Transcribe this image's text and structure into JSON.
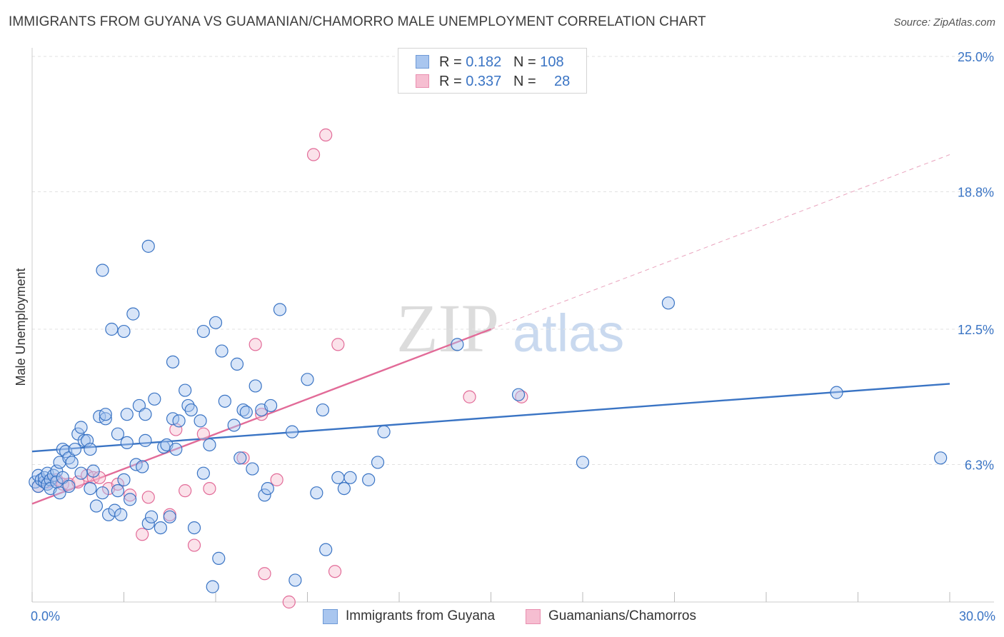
{
  "title": "IMMIGRANTS FROM GUYANA VS GUAMANIAN/CHAMORRO MALE UNEMPLOYMENT CORRELATION CHART",
  "source": "Source: ZipAtlas.com",
  "watermark": {
    "zip": "ZIP",
    "atlas": "atlas"
  },
  "legend": {
    "rows": [
      {
        "r_label": "R = ",
        "r_value": "0.182",
        "n_label": "N = ",
        "n_value": "108"
      },
      {
        "r_label": "R = ",
        "r_value": "0.337",
        "n_label": "N = ",
        "n_value": "28"
      }
    ]
  },
  "chart_data": {
    "type": "scatter",
    "title": "IMMIGRANTS FROM GUYANA VS GUAMANIAN/CHAMORRO MALE UNEMPLOYMENT CORRELATION CHART",
    "xlabel": "",
    "ylabel": "Male Unemployment",
    "xlim": [
      0,
      30
    ],
    "ylim": [
      0,
      25
    ],
    "x_tick_labels": [
      "0.0%",
      "30.0%"
    ],
    "y_ticks": [
      6.3,
      12.5,
      18.8,
      25.0
    ],
    "y_tick_labels": [
      "6.3%",
      "12.5%",
      "18.8%",
      "25.0%"
    ],
    "grid": true,
    "legend_position": "bottom-center",
    "colors": {
      "blue": "#3a74c4",
      "blue_fill": "#a9c6ef",
      "pink": "#e26b98",
      "pink_fill": "#f6bed1"
    },
    "series": [
      {
        "name": "Immigrants from Guyana",
        "color": "#3a74c4",
        "r": 0.182,
        "n": 108,
        "trend": {
          "x": [
            0,
            30
          ],
          "y": [
            6.9,
            10.0
          ]
        },
        "points": [
          [
            0.1,
            5.5
          ],
          [
            0.2,
            5.3
          ],
          [
            0.2,
            5.8
          ],
          [
            0.3,
            5.6
          ],
          [
            0.4,
            5.5
          ],
          [
            0.4,
            5.7
          ],
          [
            0.5,
            5.4
          ],
          [
            0.5,
            5.9
          ],
          [
            0.6,
            5.6
          ],
          [
            0.6,
            5.2
          ],
          [
            0.7,
            5.8
          ],
          [
            0.8,
            6.0
          ],
          [
            0.8,
            5.5
          ],
          [
            0.9,
            6.4
          ],
          [
            0.9,
            5.0
          ],
          [
            1.0,
            7.0
          ],
          [
            1.0,
            5.7
          ],
          [
            1.1,
            6.9
          ],
          [
            1.2,
            6.6
          ],
          [
            1.2,
            5.3
          ],
          [
            1.3,
            6.4
          ],
          [
            1.4,
            7.0
          ],
          [
            1.5,
            7.7
          ],
          [
            1.6,
            8.0
          ],
          [
            1.6,
            5.9
          ],
          [
            1.7,
            7.4
          ],
          [
            1.8,
            7.4
          ],
          [
            1.9,
            5.2
          ],
          [
            1.9,
            7.0
          ],
          [
            2.0,
            6.0
          ],
          [
            2.1,
            4.4
          ],
          [
            2.2,
            8.5
          ],
          [
            2.3,
            5.0
          ],
          [
            2.3,
            15.2
          ],
          [
            2.4,
            8.4
          ],
          [
            2.4,
            8.6
          ],
          [
            2.5,
            4.0
          ],
          [
            2.6,
            12.5
          ],
          [
            2.7,
            4.2
          ],
          [
            2.8,
            5.1
          ],
          [
            2.8,
            7.7
          ],
          [
            2.9,
            4.0
          ],
          [
            3.0,
            5.6
          ],
          [
            3.0,
            12.4
          ],
          [
            3.1,
            7.3
          ],
          [
            3.1,
            8.6
          ],
          [
            3.2,
            4.7
          ],
          [
            3.3,
            13.2
          ],
          [
            3.4,
            6.3
          ],
          [
            3.5,
            9.0
          ],
          [
            3.6,
            6.2
          ],
          [
            3.7,
            8.6
          ],
          [
            3.7,
            7.4
          ],
          [
            3.8,
            16.3
          ],
          [
            3.8,
            3.6
          ],
          [
            3.9,
            3.9
          ],
          [
            4.0,
            9.3
          ],
          [
            4.2,
            3.4
          ],
          [
            4.3,
            7.1
          ],
          [
            4.4,
            7.2
          ],
          [
            4.5,
            3.9
          ],
          [
            4.6,
            8.4
          ],
          [
            4.6,
            11.0
          ],
          [
            4.7,
            7.0
          ],
          [
            4.8,
            8.3
          ],
          [
            5.0,
            9.7
          ],
          [
            5.1,
            9.0
          ],
          [
            5.2,
            8.8
          ],
          [
            5.3,
            3.4
          ],
          [
            5.5,
            8.3
          ],
          [
            5.6,
            5.9
          ],
          [
            5.6,
            12.4
          ],
          [
            5.8,
            7.2
          ],
          [
            5.9,
            0.7
          ],
          [
            6.0,
            12.8
          ],
          [
            6.1,
            2.0
          ],
          [
            6.2,
            11.5
          ],
          [
            6.3,
            9.2
          ],
          [
            6.6,
            8.1
          ],
          [
            6.7,
            10.9
          ],
          [
            6.8,
            6.6
          ],
          [
            6.9,
            8.8
          ],
          [
            7.0,
            8.7
          ],
          [
            7.2,
            6.1
          ],
          [
            7.3,
            9.9
          ],
          [
            7.5,
            8.8
          ],
          [
            7.6,
            4.9
          ],
          [
            7.7,
            5.2
          ],
          [
            7.8,
            9.0
          ],
          [
            8.1,
            13.4
          ],
          [
            8.5,
            7.8
          ],
          [
            8.6,
            1.0
          ],
          [
            9.0,
            10.2
          ],
          [
            9.3,
            5.0
          ],
          [
            9.5,
            8.8
          ],
          [
            9.6,
            2.4
          ],
          [
            10.0,
            5.7
          ],
          [
            10.2,
            5.2
          ],
          [
            10.4,
            5.7
          ],
          [
            11.0,
            5.6
          ],
          [
            11.3,
            6.4
          ],
          [
            11.5,
            7.8
          ],
          [
            13.9,
            11.8
          ],
          [
            15.9,
            9.5
          ],
          [
            18.0,
            6.4
          ],
          [
            20.8,
            13.7
          ],
          [
            26.3,
            9.6
          ],
          [
            29.7,
            6.6
          ]
        ]
      },
      {
        "name": "Guamanians/Chamorros",
        "color": "#e26b98",
        "r": 0.337,
        "n": 28,
        "trend": {
          "x": [
            0,
            15
          ],
          "y": [
            4.5,
            12.5
          ],
          "extended": {
            "x": [
              15,
              30
            ],
            "y": [
              12.5,
              20.5
            ]
          }
        },
        "points": [
          [
            0.2,
            5.3
          ],
          [
            0.5,
            5.5
          ],
          [
            0.8,
            5.6
          ],
          [
            1.0,
            5.4
          ],
          [
            1.2,
            5.4
          ],
          [
            1.5,
            5.5
          ],
          [
            1.8,
            5.8
          ],
          [
            2.0,
            5.7
          ],
          [
            2.2,
            5.7
          ],
          [
            2.5,
            5.2
          ],
          [
            2.8,
            5.4
          ],
          [
            3.2,
            4.9
          ],
          [
            3.6,
            3.1
          ],
          [
            3.8,
            4.8
          ],
          [
            4.5,
            4.0
          ],
          [
            4.7,
            7.9
          ],
          [
            5.0,
            5.1
          ],
          [
            5.3,
            2.6
          ],
          [
            5.6,
            7.7
          ],
          [
            5.8,
            5.2
          ],
          [
            6.9,
            6.6
          ],
          [
            7.5,
            8.6
          ],
          [
            7.6,
            1.3
          ],
          [
            8.0,
            5.6
          ],
          [
            8.4,
            0.0
          ],
          [
            9.2,
            20.5
          ],
          [
            9.6,
            21.4
          ],
          [
            9.9,
            1.4
          ]
        ]
      }
    ],
    "extra_pink_points": [
      [
        7.3,
        11.8
      ],
      [
        10.0,
        11.8
      ],
      [
        14.3,
        9.4
      ],
      [
        16.0,
        9.4
      ]
    ]
  }
}
